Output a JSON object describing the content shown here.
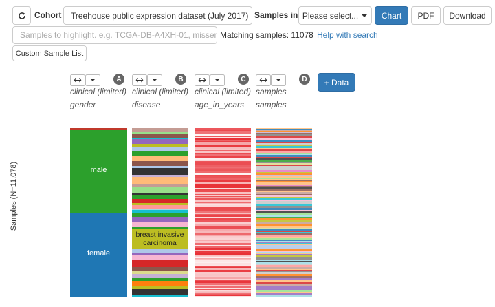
{
  "toolbar": {
    "cohort_label": "Cohort",
    "cohort": "Treehouse public expression dataset (July 2017)",
    "samples_in_label": "Samples in",
    "samples_in": "Please select...",
    "buttons": [
      "Chart",
      "PDF",
      "Download"
    ]
  },
  "search": {
    "placeholder": "Samples to highlight. e.g. TCGA-DB-A4XH-01, missen",
    "matching": "Matching samples: 11078",
    "help": "Help with search",
    "custom_list": "Custom Sample List"
  },
  "columns": [
    {
      "letter": "A",
      "source": "clinical (limited)",
      "field": "gender"
    },
    {
      "letter": "B",
      "source": "clinical (limited)",
      "field": "disease"
    },
    {
      "letter": "C",
      "source": "clinical (limited)",
      "field": "age_in_years"
    },
    {
      "letter": "D",
      "source": "samples",
      "field": "samples"
    }
  ],
  "add_data": "+ Data",
  "y_label": "Samples (N=11,078)",
  "heatmap_labels": [
    "male",
    "female",
    "breast invasive carcinoma"
  ]
}
